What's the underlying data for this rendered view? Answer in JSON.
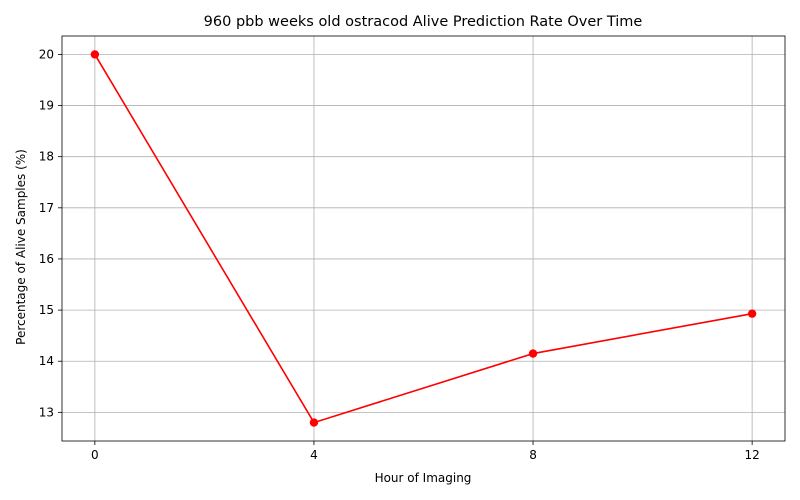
{
  "chart_data": {
    "type": "line",
    "title": "960 pbb weeks old ostracod Alive Prediction Rate Over Time",
    "xlabel": "Hour of Imaging",
    "ylabel": "Percentage of Alive Samples (%)",
    "x": [
      0,
      4,
      8,
      12
    ],
    "x_ticks": [
      0,
      4,
      8,
      12
    ],
    "xlim": [
      -0.6,
      12.6
    ],
    "y_ticks": [
      13,
      14,
      15,
      16,
      17,
      18,
      19,
      20
    ],
    "ylim": [
      12.44,
      20.36
    ],
    "grid": true,
    "series": [
      {
        "values": [
          20.0,
          12.8,
          14.15,
          14.93
        ],
        "color": "#ff0000",
        "marker": "circle"
      }
    ]
  }
}
